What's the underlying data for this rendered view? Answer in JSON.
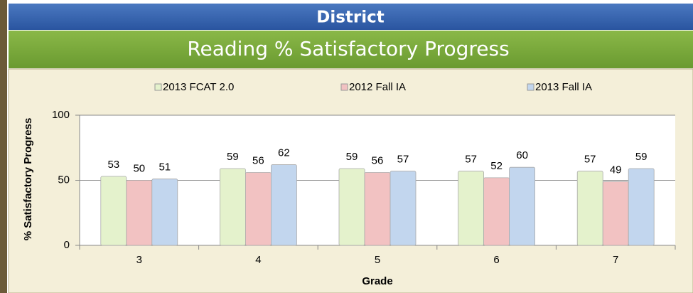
{
  "chart_data": {
    "type": "bar",
    "header": "District",
    "title": "Reading % Satisfactory Progress",
    "x_label": "Grade",
    "y_label": "% Satisfactory Progress",
    "categories": [
      "3",
      "4",
      "5",
      "6",
      "7"
    ],
    "series": [
      {
        "name": "2013 FCAT 2.0",
        "color": "#e4f2cc",
        "values": [
          53,
          59,
          59,
          57,
          57
        ]
      },
      {
        "name": "2012 Fall IA",
        "color": "#f2c2c2",
        "values": [
          50,
          56,
          56,
          52,
          49
        ]
      },
      {
        "name": "2013 Fall IA",
        "color": "#c2d6ee",
        "values": [
          51,
          62,
          57,
          60,
          59
        ]
      }
    ],
    "ylim": [
      0,
      100
    ],
    "yticks": [
      0,
      50,
      100
    ],
    "grid": true,
    "legend": "top"
  }
}
